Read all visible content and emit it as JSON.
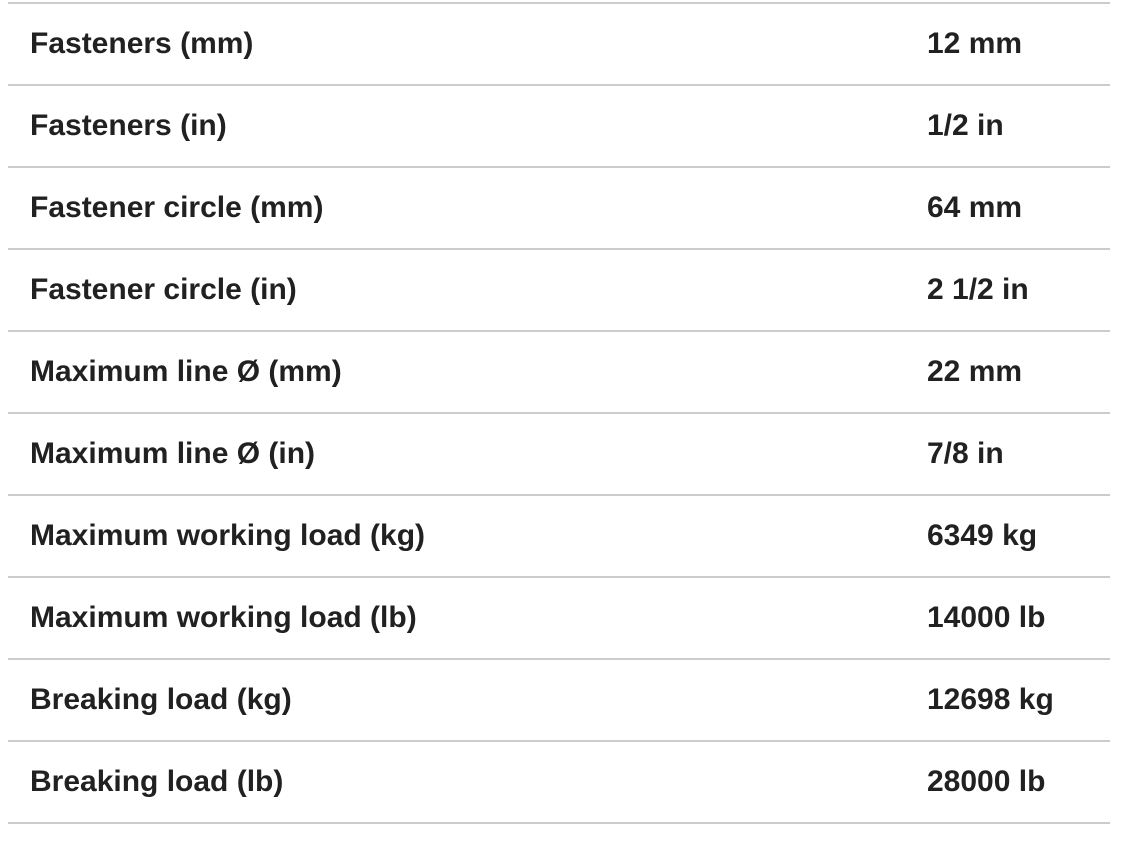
{
  "spec_table": {
    "colors": {
      "text": "#212121",
      "divider": "#cccccc",
      "background": "#ffffff"
    },
    "rows": [
      {
        "label": "Fasteners (mm)",
        "value": "12 mm"
      },
      {
        "label": "Fasteners (in)",
        "value": "1/2 in"
      },
      {
        "label": "Fastener circle (mm)",
        "value": "64 mm"
      },
      {
        "label": "Fastener circle (in)",
        "value": "2 1/2 in"
      },
      {
        "label": "Maximum line Ø (mm)",
        "value": "22 mm"
      },
      {
        "label": "Maximum line Ø (in)",
        "value": "7/8 in"
      },
      {
        "label": "Maximum working load (kg)",
        "value": "6349 kg"
      },
      {
        "label": "Maximum working load (lb)",
        "value": "14000 lb"
      },
      {
        "label": "Breaking load (kg)",
        "value": "12698 kg"
      },
      {
        "label": "Breaking load (lb)",
        "value": "28000 lb"
      }
    ]
  }
}
